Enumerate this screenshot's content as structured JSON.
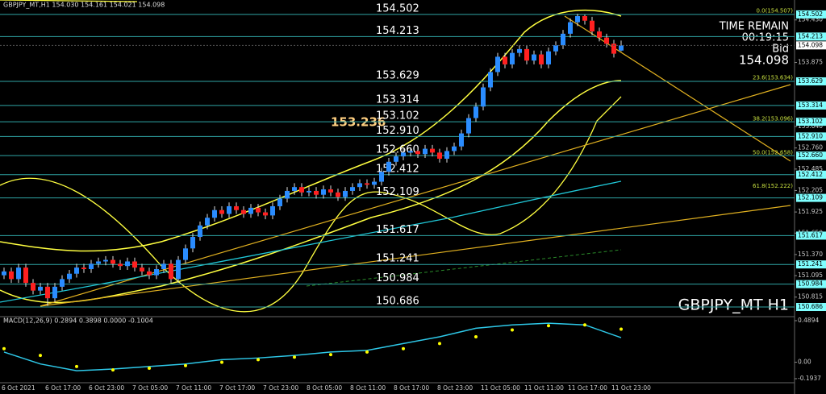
{
  "chart_data": {
    "type": "candlestick",
    "header": "GBPJPY_MT,H1  154.030 154.161 154.021 154.098",
    "watermark": "GBPJPY_MT H1",
    "timer": {
      "title": "TIME REMAIN",
      "time": "00:19:15",
      "side": "Bid",
      "price": "154.098"
    },
    "marker": "153.236",
    "ylim": [
      150.56,
      154.69
    ],
    "yticks": [
      {
        "value": 154.43,
        "label": "154.430"
      },
      153.875,
      {
        "value": 153.04,
        "label": "153.040"
      },
      {
        "value": 152.76,
        "label": "152.760"
      },
      152.485,
      152.205,
      151.925,
      {
        "value": 151.65,
        "label": "151.650"
      },
      {
        "value": 151.37,
        "label": "151.370"
      },
      151.095,
      150.815
    ],
    "levels": [
      154.502,
      154.213,
      153.629,
      153.314,
      153.102,
      152.91,
      152.66,
      152.412,
      152.109,
      151.617,
      151.241,
      150.984,
      150.686
    ],
    "level_labels": [
      "154.502",
      "154.213",
      "153.629",
      "153.314",
      "153.102",
      "152.910",
      "152.660",
      "152.412",
      "152.109",
      "151.617",
      "151.241",
      "150.984",
      "150.686"
    ],
    "last_price": {
      "value": 154.098,
      "label": "154.098"
    },
    "fib": [
      {
        "label": "0.0(154.507)",
        "value": 154.507
      },
      {
        "label": "23.6(153.634)",
        "value": 153.634
      },
      {
        "label": "38.2(153.096)",
        "value": 153.096
      },
      {
        "label": "50.0(152.658)",
        "value": 152.658
      },
      {
        "label": "61.8(152.222)",
        "value": 152.222
      }
    ],
    "x_labels": [
      "6 Oct 2021",
      "6 Oct 17:00",
      "6 Oct 23:00",
      "7 Oct 05:00",
      "7 Oct 11:00",
      "7 Oct 17:00",
      "7 Oct 23:00",
      "8 Oct 05:00",
      "8 Oct 11:00",
      "8 Oct 17:00",
      "8 Oct 23:00",
      "11 Oct 05:00",
      "11 Oct 11:00",
      "11 Oct 17:00",
      "11 Oct 23:00"
    ],
    "up_color": "#2a8cff",
    "down_color": "#ff2020",
    "level_color": "#2fa5a5",
    "tag_color": "#7fffff",
    "ohlc": [
      [
        151.1,
        151.2,
        151.05,
        151.15
      ],
      [
        151.15,
        151.2,
        151.0,
        151.05
      ],
      [
        151.05,
        151.25,
        151.0,
        151.2
      ],
      [
        151.2,
        151.25,
        150.95,
        151.0
      ],
      [
        151.0,
        151.05,
        150.85,
        150.9
      ],
      [
        150.9,
        151.0,
        150.85,
        150.95
      ],
      [
        150.95,
        151.0,
        150.7,
        150.8
      ],
      [
        150.8,
        151.0,
        150.75,
        150.95
      ],
      [
        150.95,
        151.1,
        150.9,
        151.05
      ],
      [
        151.05,
        151.17,
        151.0,
        151.12
      ],
      [
        151.12,
        151.25,
        151.07,
        151.2
      ],
      [
        151.2,
        151.25,
        151.13,
        151.18
      ],
      [
        151.18,
        151.3,
        151.13,
        151.25
      ],
      [
        151.25,
        151.33,
        151.2,
        151.28
      ],
      [
        151.28,
        151.35,
        151.23,
        151.3
      ],
      [
        151.3,
        151.35,
        151.2,
        151.25
      ],
      [
        151.25,
        151.3,
        151.17,
        151.22
      ],
      [
        151.22,
        151.33,
        151.17,
        151.28
      ],
      [
        151.28,
        151.33,
        151.15,
        151.2
      ],
      [
        151.2,
        151.25,
        151.1,
        151.15
      ],
      [
        151.15,
        151.2,
        151.05,
        151.1
      ],
      [
        151.1,
        151.23,
        151.05,
        151.18
      ],
      [
        151.18,
        151.3,
        151.13,
        151.25
      ],
      [
        151.25,
        151.3,
        151.0,
        151.05
      ],
      [
        151.05,
        151.35,
        151.0,
        151.3
      ],
      [
        151.3,
        151.5,
        151.25,
        151.45
      ],
      [
        151.45,
        151.65,
        151.4,
        151.6
      ],
      [
        151.6,
        151.8,
        151.55,
        151.75
      ],
      [
        151.75,
        151.9,
        151.7,
        151.85
      ],
      [
        151.85,
        152.0,
        151.8,
        151.95
      ],
      [
        151.95,
        152.0,
        151.85,
        151.9
      ],
      [
        151.9,
        152.05,
        151.85,
        152.0
      ],
      [
        152.0,
        152.05,
        151.9,
        151.95
      ],
      [
        151.95,
        152.0,
        151.85,
        151.9
      ],
      [
        151.9,
        152.03,
        151.85,
        151.98
      ],
      [
        151.98,
        152.03,
        151.87,
        151.92
      ],
      [
        151.92,
        151.97,
        151.83,
        151.88
      ],
      [
        151.88,
        152.05,
        151.83,
        152.0
      ],
      [
        152.0,
        152.15,
        151.95,
        152.1
      ],
      [
        152.1,
        152.25,
        152.05,
        152.2
      ],
      [
        152.2,
        152.3,
        152.15,
        152.25
      ],
      [
        152.25,
        152.3,
        152.13,
        152.18
      ],
      [
        152.18,
        152.25,
        152.13,
        152.2
      ],
      [
        152.2,
        152.25,
        152.1,
        152.15
      ],
      [
        152.15,
        152.27,
        152.1,
        152.22
      ],
      [
        152.22,
        152.27,
        152.13,
        152.18
      ],
      [
        152.18,
        152.23,
        152.07,
        152.12
      ],
      [
        152.12,
        152.25,
        152.07,
        152.2
      ],
      [
        152.2,
        152.3,
        152.15,
        152.25
      ],
      [
        152.25,
        152.35,
        152.2,
        152.3
      ],
      [
        152.3,
        152.35,
        152.23,
        152.28
      ],
      [
        152.28,
        152.37,
        152.23,
        152.32
      ],
      [
        152.32,
        152.5,
        152.27,
        152.45
      ],
      [
        152.45,
        152.63,
        152.4,
        152.58
      ],
      [
        152.58,
        152.7,
        152.53,
        152.65
      ],
      [
        152.65,
        152.75,
        152.6,
        152.7
      ],
      [
        152.7,
        152.77,
        152.65,
        152.72
      ],
      [
        152.72,
        152.77,
        152.63,
        152.68
      ],
      [
        152.68,
        152.8,
        152.63,
        152.75
      ],
      [
        152.75,
        152.8,
        152.65,
        152.7
      ],
      [
        152.7,
        152.75,
        152.57,
        152.62
      ],
      [
        152.62,
        152.77,
        152.57,
        152.72
      ],
      [
        152.72,
        152.83,
        152.67,
        152.78
      ],
      [
        152.78,
        153.0,
        152.73,
        152.95
      ],
      [
        152.95,
        153.2,
        152.9,
        153.15
      ],
      [
        153.15,
        153.35,
        153.1,
        153.3
      ],
      [
        153.3,
        153.6,
        153.25,
        153.55
      ],
      [
        153.55,
        153.8,
        153.5,
        153.75
      ],
      [
        153.75,
        154.0,
        153.7,
        153.95
      ],
      [
        153.95,
        154.0,
        153.8,
        153.85
      ],
      [
        153.85,
        154.05,
        153.8,
        154.0
      ],
      [
        154.0,
        154.1,
        153.95,
        154.05
      ],
      [
        154.05,
        154.1,
        153.85,
        153.9
      ],
      [
        153.9,
        154.03,
        153.85,
        153.98
      ],
      [
        153.98,
        154.03,
        153.8,
        153.85
      ],
      [
        153.85,
        154.07,
        153.8,
        154.02
      ],
      [
        154.02,
        154.15,
        153.97,
        154.1
      ],
      [
        154.1,
        154.3,
        154.05,
        154.25
      ],
      [
        154.25,
        154.45,
        154.2,
        154.4
      ],
      [
        154.4,
        154.51,
        154.35,
        154.48
      ],
      [
        154.48,
        154.5,
        154.37,
        154.42
      ],
      [
        154.42,
        154.47,
        154.23,
        154.28
      ],
      [
        154.28,
        154.33,
        154.15,
        154.2
      ],
      [
        154.2,
        154.25,
        154.07,
        154.12
      ],
      [
        154.12,
        154.17,
        153.94,
        153.99
      ],
      [
        154.03,
        154.161,
        154.021,
        154.098
      ]
    ],
    "macd": {
      "title": "MACD(12,26,9) 0.2894 0.3898 0.0000 -0.1004",
      "ylim": [
        -0.1937,
        0.4894
      ],
      "yticks": [
        0.4894,
        {
          "value": 0,
          "label": "0.00"
        },
        -0.1937
      ],
      "x": [
        0,
        5,
        10,
        15,
        20,
        25,
        30,
        35,
        40,
        45,
        50,
        55,
        60,
        65,
        70,
        75,
        80,
        85
      ],
      "line": [
        0.12,
        -0.02,
        -0.1,
        -0.08,
        -0.05,
        -0.02,
        0.03,
        0.05,
        0.08,
        0.12,
        0.14,
        0.22,
        0.3,
        0.4,
        0.44,
        0.46,
        0.44,
        0.2894
      ],
      "signal": [
        0.16,
        0.08,
        -0.05,
        -0.09,
        -0.07,
        -0.04,
        0.0,
        0.03,
        0.06,
        0.09,
        0.12,
        0.16,
        0.22,
        0.3,
        0.38,
        0.43,
        0.44,
        0.3898
      ],
      "line_color": "#2ec8e8",
      "signal_color": "#ffff00"
    }
  }
}
